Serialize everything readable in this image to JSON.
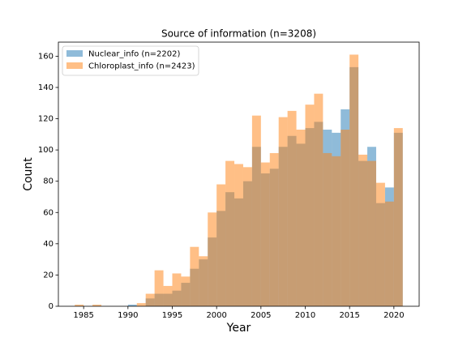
{
  "chart_data": {
    "type": "histogram",
    "title": "Source of information (n=3208)",
    "x_label": "Year",
    "y_label": "Count",
    "bins": [
      1984,
      1985,
      1986,
      1987,
      1988,
      1989,
      1990,
      1991,
      1992,
      1993,
      1994,
      1995,
      1996,
      1997,
      1998,
      1999,
      2000,
      2001,
      2002,
      2003,
      2004,
      2005,
      2006,
      2007,
      2008,
      2009,
      2010,
      2011,
      2012,
      2013,
      2014,
      2015,
      2016,
      2017,
      2018,
      2019,
      2020,
      2021
    ],
    "series": [
      {
        "name": "Nuclear_info (n=2202)",
        "color": "#1f77b4",
        "alpha": 0.5,
        "values": [
          0,
          0,
          0,
          0,
          0,
          0,
          1,
          0,
          5,
          8,
          8,
          10,
          15,
          24,
          30,
          44,
          61,
          73,
          69,
          80,
          102,
          85,
          88,
          102,
          109,
          104,
          114,
          118,
          113,
          111,
          126,
          153,
          93,
          102,
          66,
          76,
          111
        ]
      },
      {
        "name": "Chloroplast_info (n=2423)",
        "color": "#ff7f0e",
        "alpha": 0.5,
        "values": [
          1,
          0,
          1,
          0,
          0,
          0,
          0,
          2,
          8,
          23,
          13,
          21,
          19,
          38,
          32,
          60,
          78,
          93,
          91,
          89,
          122,
          92,
          98,
          121,
          125,
          113,
          129,
          136,
          98,
          96,
          113,
          161,
          97,
          93,
          79,
          67,
          114
        ]
      }
    ],
    "xlim": [
      1982.15,
      2022.85
    ],
    "xticks": [
      1985,
      1990,
      1995,
      2000,
      2005,
      2010,
      2015,
      2020
    ],
    "ylim": [
      0,
      169
    ],
    "yticks": [
      0,
      20,
      40,
      60,
      80,
      100,
      120,
      140,
      160
    ],
    "legend": "upper left",
    "grid": false
  }
}
